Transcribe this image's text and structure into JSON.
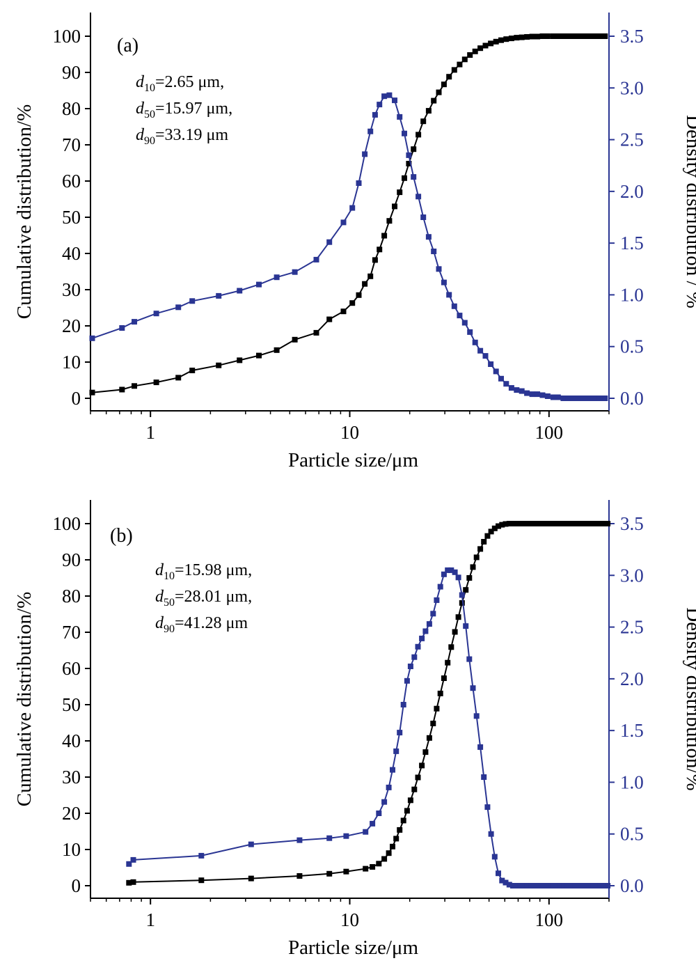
{
  "chart_data": [
    {
      "type": "line",
      "panel_label": "(a)",
      "xlabel": "Particle size/μm",
      "ylabel_left": "Cumulative distribution/%",
      "ylabel_right": "Density distribution / %",
      "xscale": "log",
      "xlim": [
        0.5,
        200
      ],
      "ylim_left": [
        0,
        100
      ],
      "ylim_right": [
        0,
        3.5
      ],
      "x_ticks": [
        1,
        10,
        100
      ],
      "x_tick_labels": [
        "1",
        "10",
        "100"
      ],
      "y_left_ticks": [
        0,
        10,
        20,
        30,
        40,
        50,
        60,
        70,
        80,
        90,
        100
      ],
      "y_left_tick_labels": [
        "0",
        "10",
        "20",
        "30",
        "40",
        "50",
        "60",
        "70",
        "80",
        "90",
        "100"
      ],
      "y_right_ticks": [
        0,
        0.5,
        1.0,
        1.5,
        2.0,
        2.5,
        3.0,
        3.5
      ],
      "y_right_tick_labels": [
        "0.0",
        "0.5",
        "1.0",
        "1.5",
        "2.0",
        "2.5",
        "3.0",
        "3.5"
      ],
      "annotations": [
        {
          "sub": "10",
          "value": "=2.65 μm,"
        },
        {
          "sub": "50",
          "value": "=15.97 μm,"
        },
        {
          "sub": "90",
          "value": "=33.19 μm"
        }
      ],
      "series": [
        {
          "role": "cumulative",
          "axis": "left",
          "color": "#000000",
          "x": [
            0.51,
            0.72,
            0.83,
            1.07,
            1.38,
            1.62,
            2.2,
            2.8,
            3.5,
            4.3,
            5.3,
            6.8,
            7.9,
            9.3,
            10.3,
            11.1,
            11.9,
            12.7,
            13.4,
            14.1,
            14.9,
            15.8,
            16.8,
            17.8,
            18.8,
            19.8,
            20.9,
            22.1,
            23.4,
            24.9,
            26.4,
            28.0,
            29.7,
            31.5,
            33.5,
            35.6,
            37.8,
            40.1,
            42.6,
            45.2,
            48.0,
            51.0,
            54.2,
            57.5,
            61.0,
            64.8,
            68.8,
            73.0,
            77.5,
            82.3,
            87.4,
            92.8,
            98.5,
            105,
            111,
            118,
            125,
            133,
            141,
            150,
            159,
            169,
            180,
            191
          ],
          "values": [
            1.6,
            2.4,
            3.4,
            4.4,
            5.7,
            7.7,
            9.1,
            10.5,
            11.8,
            13.3,
            16.2,
            18.1,
            21.8,
            24.0,
            26.3,
            28.5,
            31.6,
            33.7,
            38.2,
            41.1,
            44.9,
            49.0,
            53.0,
            56.9,
            60.8,
            64.8,
            68.8,
            72.8,
            76.5,
            79.4,
            82.2,
            84.5,
            86.7,
            88.8,
            90.7,
            92.2,
            93.6,
            94.8,
            95.8,
            96.7,
            97.4,
            98.0,
            98.5,
            98.9,
            99.2,
            99.4,
            99.6,
            99.7,
            99.8,
            99.9,
            99.9,
            100,
            100,
            100,
            100,
            100,
            100,
            100,
            100,
            100,
            100,
            100,
            100,
            100
          ]
        },
        {
          "role": "density",
          "axis": "right",
          "color": "#2a3593",
          "x": [
            0.51,
            0.72,
            0.83,
            1.07,
            1.38,
            1.62,
            2.2,
            2.8,
            3.5,
            4.3,
            5.3,
            6.8,
            7.9,
            9.3,
            10.3,
            11.1,
            11.9,
            12.7,
            13.4,
            14.1,
            14.9,
            15.8,
            16.8,
            17.8,
            18.8,
            19.8,
            20.9,
            22.1,
            23.4,
            24.9,
            26.4,
            28.0,
            29.7,
            31.5,
            33.5,
            35.6,
            37.8,
            40.1,
            42.6,
            45.2,
            48.0,
            51.0,
            54.2,
            57.5,
            61.0,
            64.8,
            68.8,
            73.0,
            77.5,
            82.3,
            87.4,
            92.8,
            98.5,
            105,
            111,
            118,
            125,
            133,
            141,
            150,
            159,
            169,
            180,
            191
          ],
          "values": [
            0.58,
            0.68,
            0.74,
            0.82,
            0.88,
            0.94,
            0.99,
            1.04,
            1.1,
            1.17,
            1.22,
            1.34,
            1.51,
            1.7,
            1.84,
            2.08,
            2.36,
            2.58,
            2.74,
            2.84,
            2.92,
            2.93,
            2.88,
            2.72,
            2.56,
            2.35,
            2.14,
            1.95,
            1.75,
            1.56,
            1.42,
            1.25,
            1.12,
            1.0,
            0.89,
            0.8,
            0.73,
            0.64,
            0.54,
            0.46,
            0.41,
            0.33,
            0.26,
            0.19,
            0.14,
            0.1,
            0.08,
            0.07,
            0.05,
            0.04,
            0.04,
            0.03,
            0.02,
            0.01,
            0.01,
            0.0,
            0.0,
            0.0,
            0.0,
            0.0,
            0.0,
            0.0,
            0.0,
            0.0
          ]
        }
      ]
    },
    {
      "type": "line",
      "panel_label": "(b)",
      "xlabel": "Particle size/μm",
      "ylabel_left": "Cumulative distribution/%",
      "ylabel_right": "Density distribution/%",
      "xscale": "log",
      "xlim": [
        0.5,
        200
      ],
      "ylim_left": [
        0,
        100
      ],
      "ylim_right": [
        0,
        3.5
      ],
      "x_ticks": [
        1,
        10,
        100
      ],
      "x_tick_labels": [
        "1",
        "10",
        "100"
      ],
      "y_left_ticks": [
        0,
        10,
        20,
        30,
        40,
        50,
        60,
        70,
        80,
        90,
        100
      ],
      "y_left_tick_labels": [
        "0",
        "10",
        "20",
        "30",
        "40",
        "50",
        "60",
        "70",
        "80",
        "90",
        "100"
      ],
      "y_right_ticks": [
        0,
        0.5,
        1.0,
        1.5,
        2.0,
        2.5,
        3.0,
        3.5
      ],
      "y_right_tick_labels": [
        "0.0",
        "0.5",
        "1.0",
        "1.5",
        "2.0",
        "2.5",
        "3.0",
        "3.5"
      ],
      "annotations": [
        {
          "sub": "10",
          "value": "=15.98 μm,"
        },
        {
          "sub": "50",
          "value": "=28.01 μm,"
        },
        {
          "sub": "90",
          "value": "=41.28 μm"
        }
      ],
      "series": [
        {
          "role": "cumulative",
          "axis": "left",
          "color": "#000000",
          "x": [
            0.78,
            0.82,
            1.8,
            3.2,
            5.6,
            7.9,
            9.6,
            12.0,
            13.0,
            14.0,
            14.9,
            15.7,
            16.4,
            17.1,
            17.8,
            18.6,
            19.4,
            20.2,
            21.1,
            22.0,
            23.0,
            24.0,
            25.1,
            26.2,
            27.3,
            28.5,
            29.7,
            31.0,
            32.3,
            33.7,
            35.1,
            36.6,
            38.2,
            39.8,
            41.5,
            43.3,
            45.2,
            47.1,
            49.1,
            51.2,
            53.4,
            55.7,
            58.1,
            60.6,
            63.2,
            65.9,
            68.7,
            71.7,
            74.8,
            78.0,
            81.3,
            84.8,
            88.4,
            92.2,
            96.2,
            100,
            105,
            109,
            114,
            119,
            124,
            129,
            135,
            141,
            147,
            153,
            160,
            167,
            174,
            181,
            189,
            197
          ],
          "values": [
            0.8,
            1.0,
            1.5,
            2.0,
            2.7,
            3.3,
            3.9,
            4.7,
            5.2,
            6.1,
            7.4,
            9.0,
            10.8,
            13.0,
            15.4,
            18.0,
            20.7,
            23.6,
            26.6,
            29.9,
            33.2,
            36.9,
            40.8,
            44.8,
            48.9,
            53.1,
            57.3,
            61.6,
            65.9,
            70.1,
            74.2,
            78.1,
            81.7,
            85.0,
            88.0,
            90.7,
            93.0,
            95.0,
            96.6,
            97.8,
            98.7,
            99.3,
            99.7,
            99.9,
            100,
            100,
            100,
            100,
            100,
            100,
            100,
            100,
            100,
            100,
            100,
            100,
            100,
            100,
            100,
            100,
            100,
            100,
            100,
            100,
            100,
            100,
            100,
            100,
            100,
            100,
            100,
            100
          ]
        },
        {
          "role": "density",
          "axis": "right",
          "color": "#2a3593",
          "x": [
            0.78,
            0.82,
            1.8,
            3.2,
            5.6,
            7.9,
            9.6,
            12.0,
            13.0,
            14.0,
            14.9,
            15.7,
            16.4,
            17.1,
            17.8,
            18.6,
            19.4,
            20.2,
            21.1,
            22.0,
            23.0,
            24.0,
            25.1,
            26.2,
            27.3,
            28.5,
            29.7,
            31.0,
            32.3,
            33.7,
            35.1,
            36.6,
            38.2,
            39.8,
            41.5,
            43.3,
            45.2,
            47.1,
            49.1,
            51.2,
            53.4,
            55.7,
            58.1,
            60.6,
            63.2,
            65.9,
            68.7,
            71.7,
            74.8,
            78.0,
            81.3,
            84.8,
            88.4,
            92.2,
            96.2,
            100,
            105,
            109,
            114,
            119,
            124,
            129,
            135,
            141,
            147,
            153,
            160,
            167,
            174,
            181,
            189,
            197
          ],
          "values": [
            0.21,
            0.25,
            0.29,
            0.4,
            0.44,
            0.46,
            0.48,
            0.52,
            0.6,
            0.7,
            0.81,
            0.95,
            1.12,
            1.3,
            1.48,
            1.75,
            1.98,
            2.12,
            2.21,
            2.31,
            2.39,
            2.46,
            2.53,
            2.63,
            2.76,
            2.89,
            3.01,
            3.05,
            3.05,
            3.03,
            2.98,
            2.81,
            2.51,
            2.19,
            1.91,
            1.64,
            1.34,
            1.05,
            0.76,
            0.5,
            0.28,
            0.12,
            0.05,
            0.03,
            0.01,
            0.0,
            0.0,
            0.0,
            0.0,
            0.0,
            0.0,
            0.0,
            0.0,
            0.0,
            0.0,
            0.0,
            0.0,
            0.0,
            0.0,
            0.0,
            0.0,
            0.0,
            0.0,
            0.0,
            0.0,
            0.0,
            0.0,
            0.0,
            0.0,
            0.0,
            0.0,
            0.0
          ]
        }
      ]
    }
  ]
}
